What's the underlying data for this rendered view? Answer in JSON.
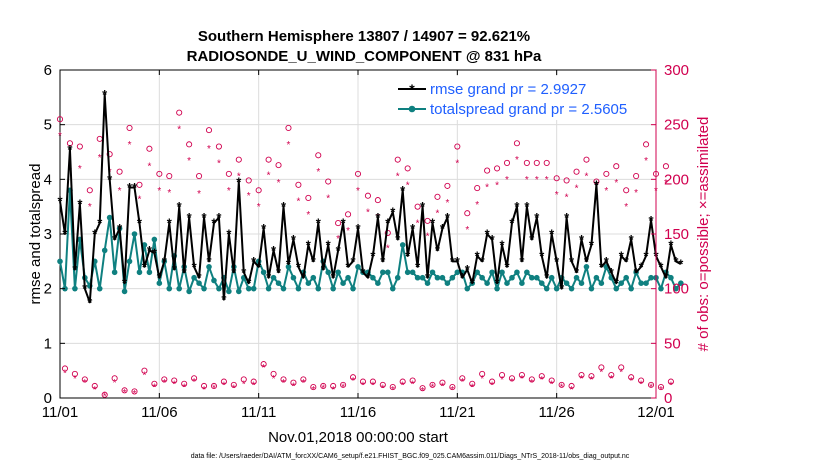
{
  "chart_data": {
    "type": "line",
    "title_line1": "Southern Hemisphere 13807 / 14907 = 92.621%",
    "title_line2": "RADIOSONDE_U_WIND_COMPONENT @ 831 hPa",
    "xlabel": "Nov.01,2018 00:00:00 start",
    "ylabel_left": "rmse and totalspread",
    "ylabel_right": "# of obs: o=possible; ×=assimilated",
    "x_ticks": [
      "11/01",
      "11/06",
      "11/11",
      "11/16",
      "11/21",
      "11/26",
      "12/01"
    ],
    "x_range_days": [
      0,
      30
    ],
    "ylim_left": [
      0,
      6
    ],
    "ylim_right": [
      0,
      300
    ],
    "y_ticks_left": [
      "0",
      "1",
      "2",
      "3",
      "4",
      "5",
      "6"
    ],
    "y_ticks_right": [
      "0",
      "50",
      "100",
      "150",
      "200",
      "250",
      "300"
    ],
    "colors": {
      "rmse": "#000000",
      "spread": "#0f8080",
      "obs": "#d1004f",
      "legend_text": "#1f5fff"
    },
    "step_days": 0.25,
    "series": [
      {
        "name": "rmse grand pr = 2.9927",
        "axis": "left",
        "values": [
          3.6,
          3.0,
          4.55,
          2.35,
          3.55,
          2.0,
          1.75,
          3.0,
          3.2,
          5.55,
          4.0,
          2.9,
          3.1,
          2.1,
          3.85,
          3.85,
          3.2,
          2.4,
          2.7,
          2.65,
          2.2,
          2.5,
          3.2,
          2.35,
          3.5,
          2.3,
          3.3,
          2.4,
          2.2,
          3.3,
          2.5,
          3.2,
          3.3,
          1.8,
          3.0,
          2.3,
          3.95,
          2.3,
          2.1,
          2.5,
          2.4,
          3.1,
          2.2,
          2.7,
          2.3,
          3.5,
          2.45,
          2.9,
          2.4,
          2.2,
          2.8,
          2.5,
          3.2,
          2.35,
          2.8,
          2.2,
          2.7,
          3.2,
          2.4,
          2.5,
          3.1,
          2.3,
          2.2,
          2.6,
          3.3,
          2.5,
          3.2,
          3.4,
          2.9,
          3.8,
          2.6,
          3.1,
          2.4,
          3.5,
          2.2,
          3.2,
          2.7,
          3.1,
          3.3,
          2.5,
          2.5,
          2.2,
          2.35,
          2.1,
          2.6,
          2.5,
          3.0,
          2.9,
          2.1,
          2.8,
          2.4,
          3.2,
          3.5,
          2.5,
          3.5,
          2.9,
          3.3,
          2.6,
          2.2,
          3.0,
          2.5,
          2.0,
          3.3,
          2.5,
          2.3,
          2.9,
          2.5,
          2.8,
          3.9,
          2.4,
          2.5,
          2.3,
          2.1,
          2.6,
          2.5,
          2.9,
          2.3,
          2.4,
          2.6,
          3.25,
          2.6,
          2.4,
          2.2,
          2.8,
          2.5,
          2.45
        ]
      },
      {
        "name": "totalspread grand pr = 2.5605",
        "axis": "left",
        "values": [
          2.5,
          2.0,
          3.8,
          2.0,
          2.9,
          2.2,
          2.05,
          2.5,
          2.0,
          2.7,
          3.3,
          2.3,
          3.1,
          1.95,
          2.5,
          3.0,
          2.3,
          2.8,
          2.3,
          2.9,
          2.1,
          2.5,
          2.0,
          2.6,
          2.0,
          2.4,
          1.95,
          2.2,
          2.1,
          2.0,
          2.4,
          2.15,
          2.0,
          2.2,
          1.95,
          2.4,
          1.95,
          2.2,
          2.0,
          2.0,
          2.5,
          2.3,
          2.0,
          2.2,
          2.1,
          2.0,
          2.4,
          2.2,
          2.0,
          2.3,
          2.1,
          2.2,
          2.0,
          2.5,
          2.3,
          2.0,
          2.3,
          2.1,
          2.2,
          2.0,
          2.4,
          2.3,
          2.3,
          2.2,
          2.1,
          2.3,
          2.3,
          2.0,
          2.2,
          2.8,
          2.3,
          2.3,
          2.2,
          2.2,
          2.1,
          2.3,
          2.2,
          2.2,
          2.1,
          2.2,
          2.3,
          2.3,
          2.0,
          2.1,
          2.3,
          2.2,
          2.1,
          2.3,
          2.0,
          2.3,
          2.1,
          2.2,
          2.3,
          2.1,
          2.3,
          2.2,
          2.2,
          2.1,
          2.0,
          2.2,
          2.0,
          2.2,
          2.1,
          2.0,
          2.2,
          2.1,
          2.4,
          2.0,
          2.2,
          2.1,
          2.4,
          2.2,
          2.0,
          2.1,
          2.2,
          2.0,
          2.3,
          2.1,
          2.1,
          2.2,
          2.2,
          2.0,
          2.3,
          2.2,
          2.0,
          2.1
        ]
      },
      {
        "name": "possible obs",
        "axis": "right",
        "marker": "circle",
        "values": [
          255,
          27,
          233,
          22,
          230,
          17,
          190,
          11,
          237,
          3,
          223,
          18,
          207,
          7,
          247,
          6,
          195,
          25,
          228,
          13,
          205,
          17,
          203,
          16,
          261,
          13,
          232,
          18,
          203,
          11,
          245,
          11,
          230,
          15,
          205,
          12,
          218,
          17,
          199,
          15,
          190,
          31,
          218,
          22,
          213,
          17,
          247,
          14,
          195,
          17,
          183,
          10,
          222,
          11,
          198,
          11,
          160,
          12,
          168,
          19,
          205,
          15,
          185,
          15,
          181,
          12,
          151,
          10,
          218,
          15,
          210,
          16,
          175,
          9,
          162,
          12,
          184,
          14,
          194,
          10,
          230,
          18,
          169,
          13,
          192,
          22,
          208,
          15,
          210,
          21,
          215,
          18,
          233,
          21,
          215,
          17,
          215,
          20,
          215,
          16,
          201,
          12,
          199,
          11,
          207,
          21,
          218,
          20,
          198,
          28,
          205,
          21,
          212,
          28,
          190,
          19,
          203,
          16,
          232,
          12,
          205,
          10,
          212,
          15
        ]
      },
      {
        "name": "assimilated obs",
        "axis": "right",
        "marker": "x",
        "values": [
          240,
          23,
          208,
          18,
          210,
          14,
          175,
          8,
          220,
          2,
          207,
          14,
          190,
          5,
          232,
          4,
          182,
          21,
          212,
          10,
          190,
          14,
          188,
          13,
          246,
          10,
          217,
          15,
          187,
          8,
          228,
          9,
          215,
          12,
          190,
          9,
          203,
          13,
          185,
          12,
          175,
          28,
          204,
          18,
          197,
          14,
          232,
          11,
          180,
          14,
          168,
          8,
          207,
          9,
          183,
          8,
          146,
          10,
          153,
          16,
          190,
          12,
          170,
          12,
          166,
          9,
          137,
          8,
          203,
          12,
          195,
          13,
          160,
          7,
          148,
          10,
          169,
          11,
          179,
          8,
          215,
          15,
          154,
          10,
          177,
          18,
          193,
          12,
          195,
          17,
          200,
          15,
          218,
          18,
          200,
          14,
          200,
          17,
          200,
          13,
          186,
          10,
          184,
          8,
          192,
          18,
          203,
          17,
          183,
          24,
          190,
          18,
          197,
          24,
          175,
          16,
          188,
          13,
          217,
          10,
          190,
          8,
          197,
          12
        ]
      }
    ]
  },
  "footer": "data file: /Users/raeder/DAI/ATM_forcXX/CAM6_setup/f.e21.FHIST_BGC.f09_025.CAM6assim.011/Diags_NTrS_2018-11/obs_diag_output.nc"
}
